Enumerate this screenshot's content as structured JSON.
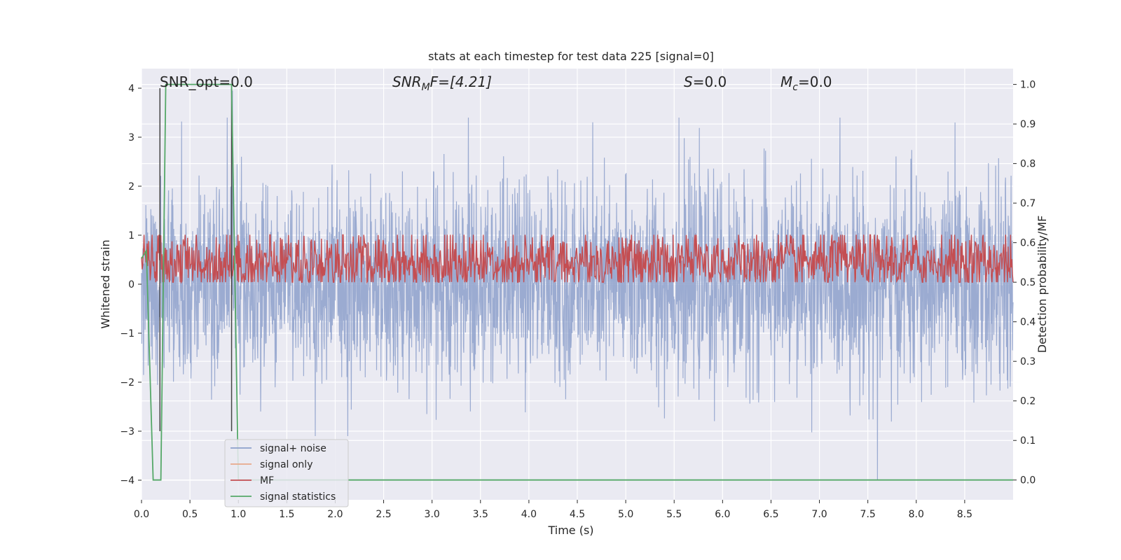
{
  "chart_data": {
    "type": "line",
    "title": "stats at each timestep for test data 225 [signal=0]",
    "xlabel": "Time (s)",
    "ylabel": "Whitened strain",
    "ylabel_right": "Detection probability/MF",
    "xlim": [
      0.0,
      9.0
    ],
    "ylim": [
      -4.4,
      4.4
    ],
    "ylim_right": [
      -0.05,
      1.04
    ],
    "x_ticks": [
      "0.0",
      "0.5",
      "1.0",
      "1.5",
      "2.0",
      "2.5",
      "3.0",
      "3.5",
      "4.0",
      "4.5",
      "5.0",
      "5.5",
      "6.0",
      "6.5",
      "7.0",
      "7.5",
      "8.0",
      "8.5"
    ],
    "x_tick_values": [
      0.0,
      0.5,
      1.0,
      1.5,
      2.0,
      2.5,
      3.0,
      3.5,
      4.0,
      4.5,
      5.0,
      5.5,
      6.0,
      6.5,
      7.0,
      7.5,
      8.0,
      8.5
    ],
    "y_ticks": [
      "−4",
      "−3",
      "−2",
      "−1",
      "0",
      "1",
      "2",
      "3",
      "4"
    ],
    "y_tick_values": [
      -4,
      -3,
      -2,
      -1,
      0,
      1,
      2,
      3,
      4
    ],
    "y_right_ticks": [
      "0.0",
      "0.1",
      "0.2",
      "0.3",
      "0.4",
      "0.5",
      "0.6",
      "0.7",
      "0.8",
      "0.9",
      "1.0"
    ],
    "y_right_tick_values": [
      0.0,
      0.1,
      0.2,
      0.3,
      0.4,
      0.5,
      0.6,
      0.7,
      0.8,
      0.9,
      1.0
    ],
    "grid": true,
    "legend_position": "lower-left",
    "annotations": {
      "snr_opt": "SNR_opt=0.0",
      "snr_mf_base": "SNR",
      "snr_mf_sub": "M",
      "snr_mf_rest": "F=[4.21]",
      "s_var": "S",
      "s_val": "=0.0",
      "mc_var": "M",
      "mc_sub": "c",
      "mc_val": "=0.0"
    },
    "series": [
      {
        "name": "signal+ noise",
        "color": "#8da0cb",
        "axis": "left",
        "sample_rate": 1000,
        "amplitude_sd": 1.0,
        "note_peaks": [
          [
            0.94,
            3.95
          ],
          [
            7.6,
            -4.0
          ],
          [
            5.55,
            3.4
          ],
          [
            8.4,
            3.3
          ]
        ]
      },
      {
        "name": "signal only",
        "color": "#e8a98a",
        "axis": "left",
        "values": []
      },
      {
        "name": "MF",
        "color": "#c44e52",
        "axis": "right",
        "baseline": 0.55,
        "spread": 0.04
      },
      {
        "name": "signal statistics",
        "color": "#55a868",
        "axis": "right",
        "x": [
          0.0,
          0.05,
          0.12,
          0.2,
          0.25,
          0.93,
          1.0,
          1.05,
          9.0
        ],
        "y": [
          0.56,
          0.58,
          0.0,
          0.0,
          1.0,
          1.0,
          0.0,
          0.0,
          0.0
        ]
      }
    ],
    "vertical_markers": [
      0.19,
      0.93
    ]
  },
  "colors": {
    "plot_bg": "#eaeaf2",
    "grid": "#ffffff",
    "text": "#262626"
  }
}
